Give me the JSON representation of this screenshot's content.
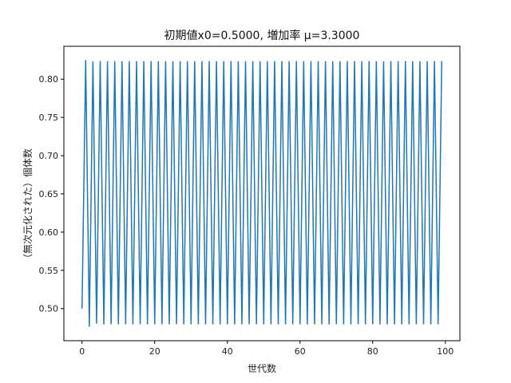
{
  "chart_data": {
    "type": "line",
    "title": "初期値x0=0.5000, 増加率 μ=3.3000",
    "xlabel": "世代数",
    "ylabel": "（無次元化された）個体数",
    "xlim": [
      -5,
      104
    ],
    "ylim": [
      0.458,
      0.843
    ],
    "xticks": [
      0,
      20,
      40,
      60,
      80,
      100
    ],
    "yticks": [
      0.5,
      0.55,
      0.6,
      0.65,
      0.7,
      0.75,
      0.8
    ],
    "xtick_labels": [
      "0",
      "20",
      "40",
      "60",
      "80",
      "100"
    ],
    "ytick_labels": [
      "0.50",
      "0.55",
      "0.60",
      "0.65",
      "0.70",
      "0.75",
      "0.80"
    ],
    "grid": false,
    "series": [
      {
        "color": "#1f77b4",
        "x0": 0.5,
        "mu": 3.3,
        "n_points": 100
      }
    ]
  }
}
